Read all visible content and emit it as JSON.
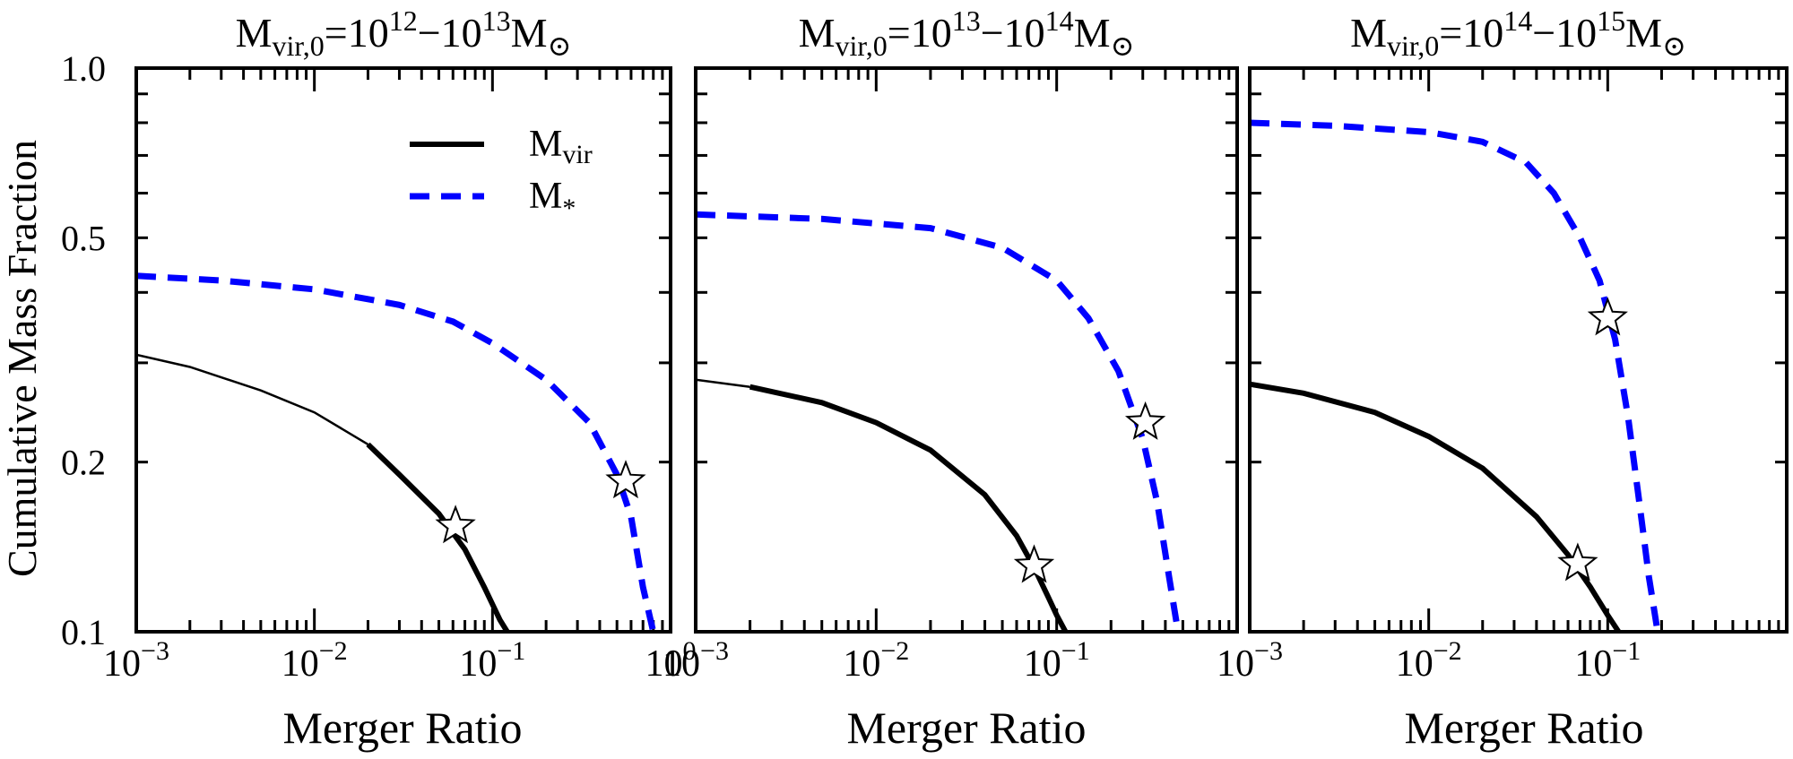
{
  "figure": {
    "ylabel": "Cumulative Mass Fraction",
    "xlabel": "Merger Ratio",
    "legend": {
      "location": "upper-right of first panel",
      "entries": [
        {
          "base": "M",
          "sub": "vir",
          "style": "solid",
          "color": "#000000"
        },
        {
          "base": "M",
          "sub": "*",
          "style": "dashed",
          "color": "#0000ff"
        }
      ]
    }
  },
  "chart_data": [
    {
      "type": "line",
      "title": {
        "base": "M",
        "sub": "vir,0",
        "eq": "=10",
        "exp1": "12",
        "dash": "−10",
        "exp2": "13",
        "unit": "M",
        "unit_sub": "⊙"
      },
      "xscale": "log",
      "yscale": "log",
      "xlim": [
        0.001,
        1.0
      ],
      "ylim": [
        0.1,
        1.0
      ],
      "xticks": [
        {
          "base": "10",
          "exp": "−3"
        },
        {
          "base": "10",
          "exp": "−2"
        },
        {
          "base": "10",
          "exp": "−1"
        },
        {
          "base": "10",
          "exp": "0"
        }
      ],
      "yticks": [
        "0.1",
        "0.2",
        "0.5",
        "1.0"
      ],
      "series": [
        {
          "name": "M_vir",
          "style": "solid",
          "color": "#000000",
          "x": [
            0.001,
            0.002,
            0.005,
            0.01,
            0.02,
            0.03,
            0.05,
            0.07,
            0.09,
            0.11,
            0.121
          ],
          "y": [
            0.31,
            0.295,
            0.268,
            0.245,
            0.215,
            0.19,
            0.162,
            0.14,
            0.12,
            0.105,
            0.1
          ],
          "thick_from_x": 0.02,
          "star": {
            "x": 0.062,
            "y": 0.154
          }
        },
        {
          "name": "M_*",
          "style": "dashed",
          "color": "#0000ff",
          "x": [
            0.001,
            0.003,
            0.01,
            0.03,
            0.06,
            0.1,
            0.2,
            0.35,
            0.5,
            0.6,
            0.7,
            0.8
          ],
          "y": [
            0.428,
            0.42,
            0.405,
            0.38,
            0.355,
            0.325,
            0.28,
            0.235,
            0.19,
            0.16,
            0.12,
            0.1
          ],
          "star": {
            "x": 0.56,
            "y": 0.185
          }
        }
      ]
    },
    {
      "type": "line",
      "title": {
        "base": "M",
        "sub": "vir,0",
        "eq": "=10",
        "exp1": "13",
        "dash": "−10",
        "exp2": "14",
        "unit": "M",
        "unit_sub": "⊙"
      },
      "xscale": "log",
      "yscale": "log",
      "xlim": [
        0.001,
        1.0
      ],
      "ylim": [
        0.1,
        1.0
      ],
      "xticks": [
        {
          "base": "10",
          "exp": "−3"
        },
        {
          "base": "10",
          "exp": "−2"
        },
        {
          "base": "10",
          "exp": "−1"
        }
      ],
      "yticks": [],
      "series": [
        {
          "name": "M_vir",
          "style": "solid",
          "color": "#000000",
          "x": [
            0.001,
            0.002,
            0.005,
            0.01,
            0.02,
            0.04,
            0.06,
            0.075,
            0.09,
            0.1,
            0.112
          ],
          "y": [
            0.28,
            0.272,
            0.255,
            0.235,
            0.21,
            0.175,
            0.148,
            0.13,
            0.115,
            0.107,
            0.1
          ],
          "thick_from_x": 0.002,
          "star": {
            "x": 0.075,
            "y": 0.131
          }
        },
        {
          "name": "M_*",
          "style": "dashed",
          "color": "#0000ff",
          "x": [
            0.001,
            0.005,
            0.02,
            0.05,
            0.1,
            0.15,
            0.22,
            0.3,
            0.36,
            0.42,
            0.47
          ],
          "y": [
            0.55,
            0.54,
            0.52,
            0.48,
            0.42,
            0.36,
            0.29,
            0.22,
            0.17,
            0.125,
            0.1
          ],
          "star": {
            "x": 0.31,
            "y": 0.235
          }
        }
      ]
    },
    {
      "type": "line",
      "title": {
        "base": "M",
        "sub": "vir,0",
        "eq": "=10",
        "exp1": "14",
        "dash": "−10",
        "exp2": "15",
        "unit": "M",
        "unit_sub": "⊙"
      },
      "xscale": "log",
      "yscale": "log",
      "xlim": [
        0.001,
        1.0
      ],
      "ylim": [
        0.1,
        1.0
      ],
      "xticks": [
        {
          "base": "10",
          "exp": "−3"
        },
        {
          "base": "10",
          "exp": "−2"
        },
        {
          "base": "10",
          "exp": "−1"
        }
      ],
      "yticks": [],
      "series": [
        {
          "name": "M_vir",
          "style": "solid",
          "color": "#000000",
          "x": [
            0.001,
            0.002,
            0.005,
            0.01,
            0.02,
            0.04,
            0.06,
            0.08,
            0.1,
            0.115
          ],
          "y": [
            0.275,
            0.265,
            0.245,
            0.222,
            0.195,
            0.16,
            0.137,
            0.12,
            0.107,
            0.1
          ],
          "thick_from_x": 0.001,
          "star": {
            "x": 0.068,
            "y": 0.132
          }
        },
        {
          "name": "M_*",
          "style": "dashed",
          "color": "#0000ff",
          "x": [
            0.001,
            0.003,
            0.01,
            0.02,
            0.035,
            0.05,
            0.07,
            0.09,
            0.11,
            0.13,
            0.15,
            0.17,
            0.19
          ],
          "y": [
            0.8,
            0.79,
            0.77,
            0.74,
            0.68,
            0.6,
            0.5,
            0.42,
            0.33,
            0.24,
            0.17,
            0.125,
            0.1
          ],
          "star": {
            "x": 0.1,
            "y": 0.36
          }
        }
      ]
    }
  ]
}
